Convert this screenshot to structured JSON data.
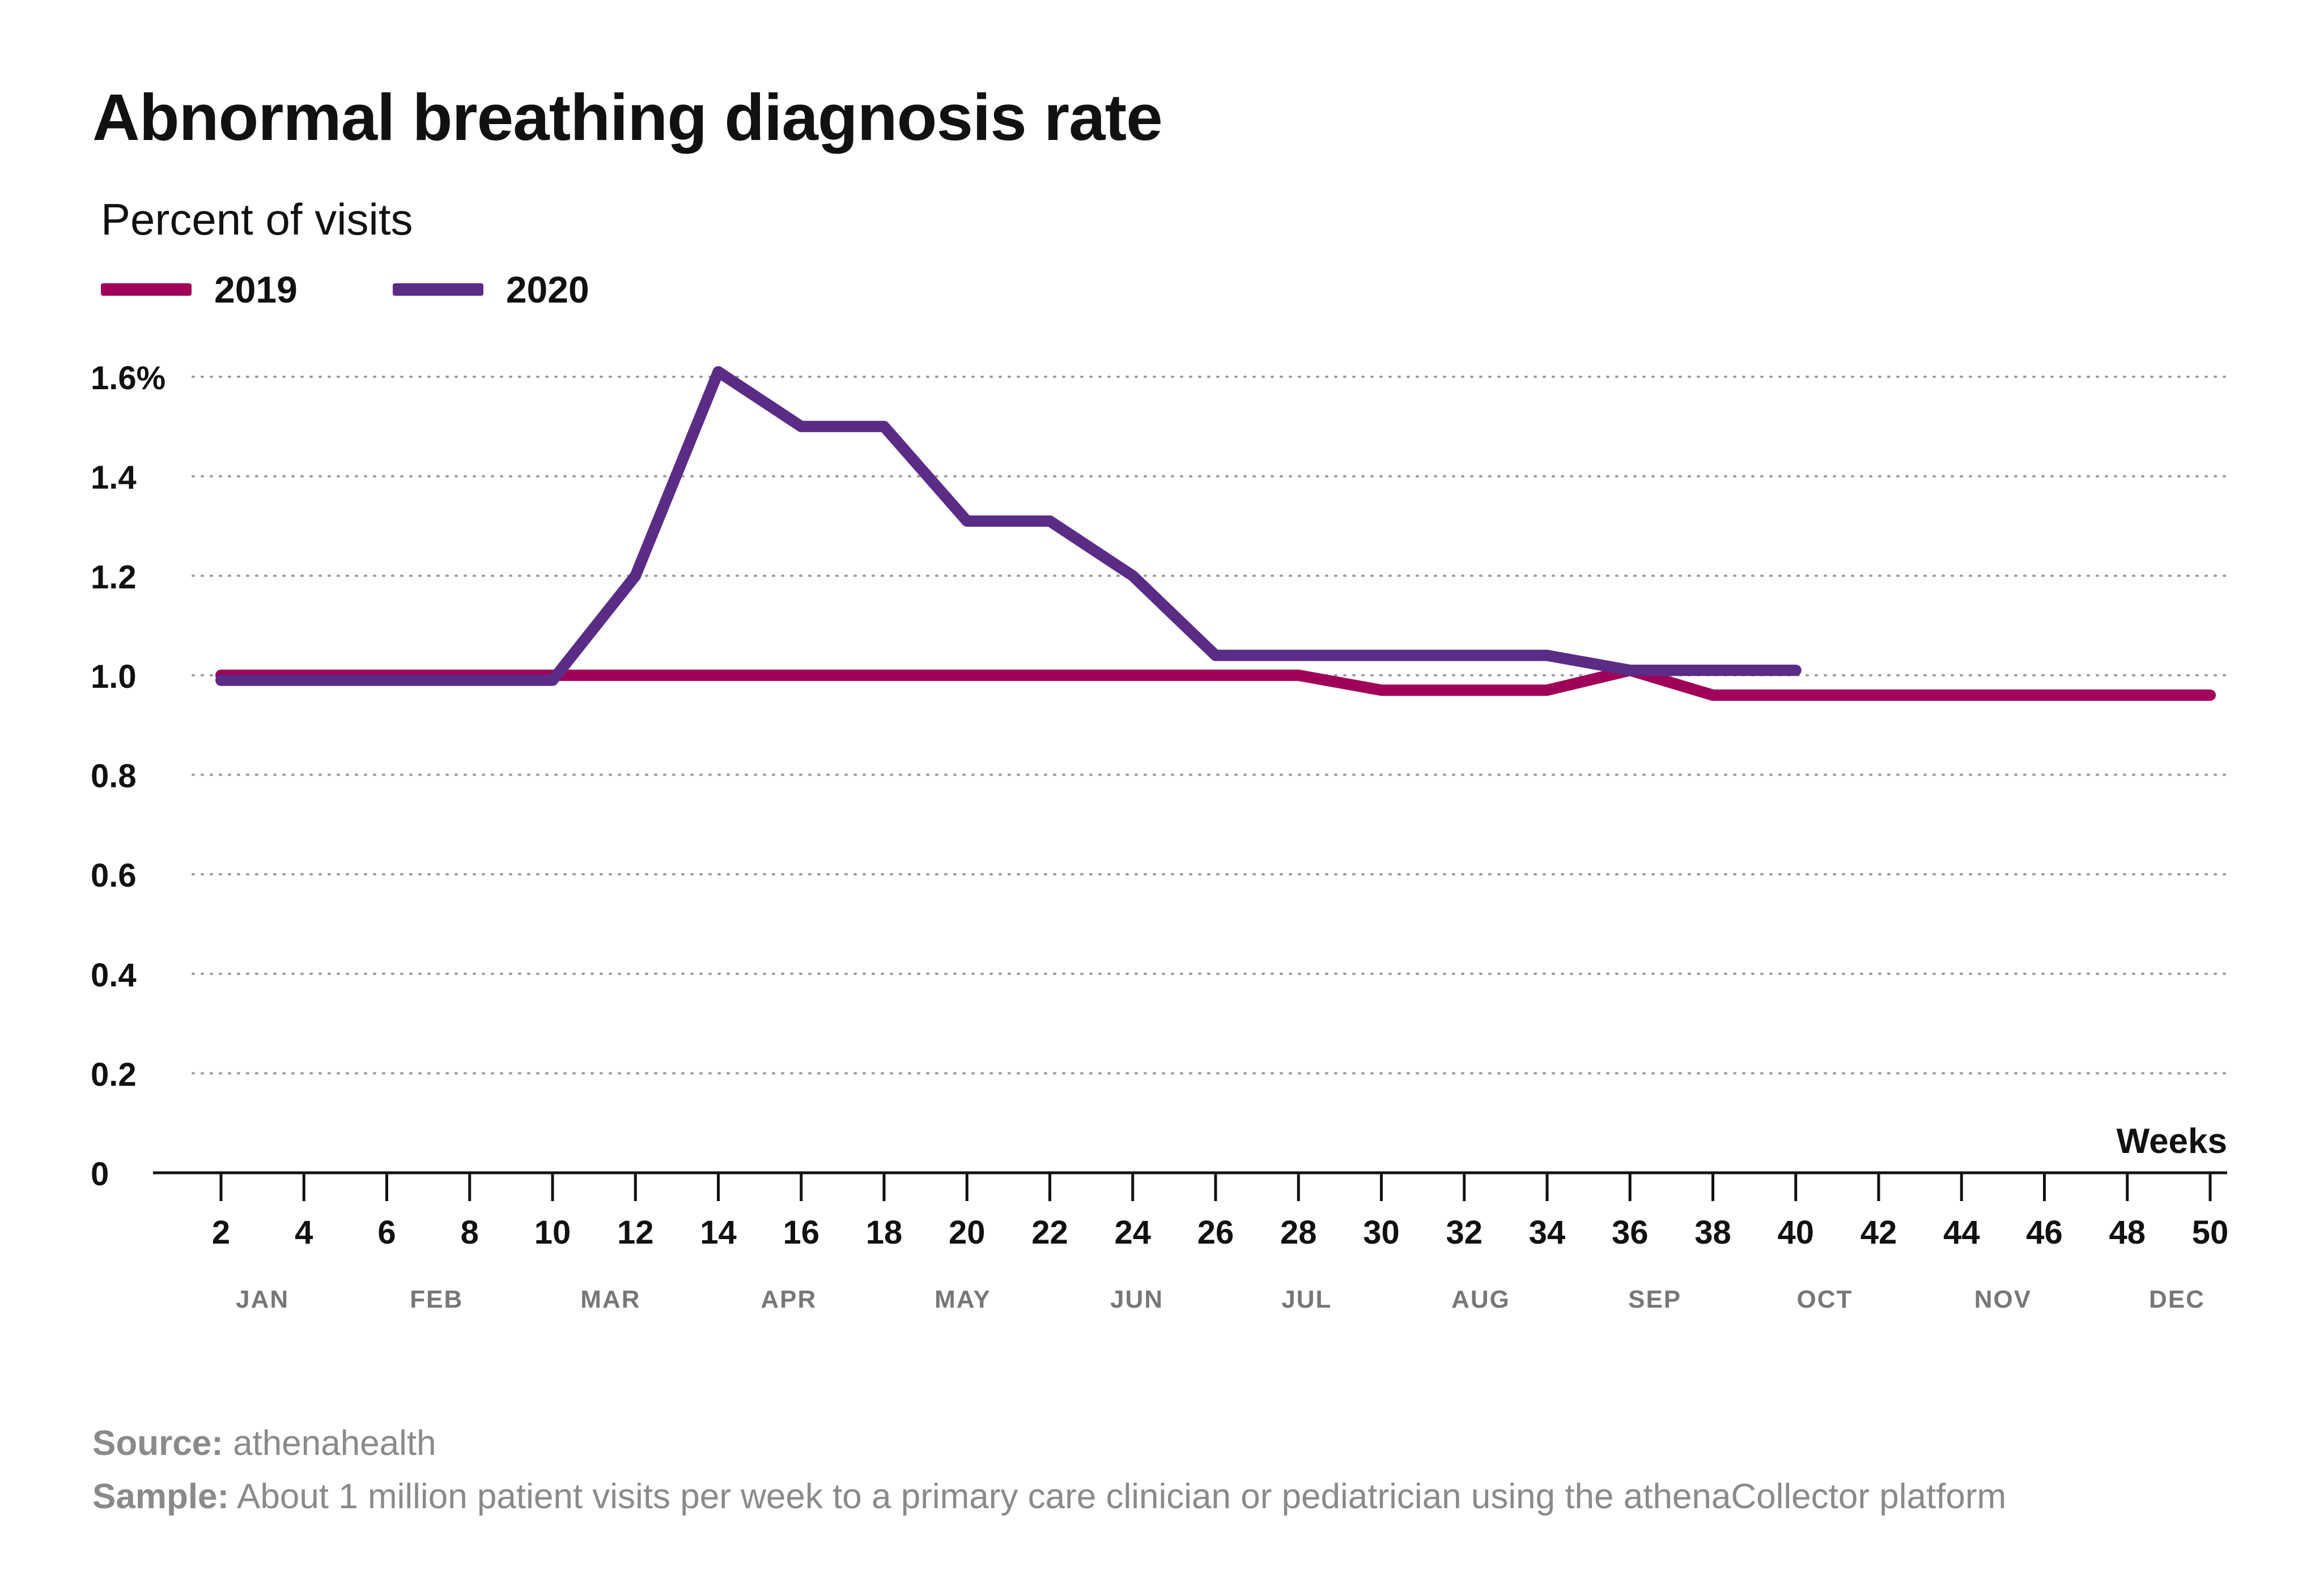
{
  "chart_data": {
    "type": "line",
    "title": "Abnormal breathing diagnosis rate",
    "subtitle": "Percent of visits",
    "xlabel": "Weeks",
    "ylabel": "",
    "xlim": [
      2,
      50
    ],
    "ylim": [
      0,
      1.6
    ],
    "grid": true,
    "legend": "top-left",
    "x_ticks": [
      2,
      4,
      6,
      8,
      10,
      12,
      14,
      16,
      18,
      20,
      22,
      24,
      26,
      28,
      30,
      32,
      34,
      36,
      38,
      40,
      42,
      44,
      46,
      48,
      50
    ],
    "y_ticks": [
      {
        "value": 0,
        "label": "0"
      },
      {
        "value": 0.2,
        "label": "0.2"
      },
      {
        "value": 0.4,
        "label": "0.4"
      },
      {
        "value": 0.6,
        "label": "0.6"
      },
      {
        "value": 0.8,
        "label": "0.8"
      },
      {
        "value": 1.0,
        "label": "1.0"
      },
      {
        "value": 1.2,
        "label": "1.2"
      },
      {
        "value": 1.4,
        "label": "1.4"
      },
      {
        "value": 1.6,
        "label": "1.6%"
      }
    ],
    "months": [
      {
        "label": "JAN",
        "x": 3
      },
      {
        "label": "FEB",
        "x": 7.2
      },
      {
        "label": "MAR",
        "x": 11.4
      },
      {
        "label": "APR",
        "x": 15.7
      },
      {
        "label": "MAY",
        "x": 19.9
      },
      {
        "label": "JUN",
        "x": 24.1
      },
      {
        "label": "JUL",
        "x": 28.2
      },
      {
        "label": "AUG",
        "x": 32.4
      },
      {
        "label": "SEP",
        "x": 36.6
      },
      {
        "label": "OCT",
        "x": 40.7
      },
      {
        "label": "NOV",
        "x": 45
      },
      {
        "label": "DEC",
        "x": 49.2
      }
    ],
    "series": [
      {
        "name": "2019",
        "color": "#a0005a",
        "points": [
          [
            2,
            1.0
          ],
          [
            28,
            1.0
          ],
          [
            30,
            0.97
          ],
          [
            34,
            0.97
          ],
          [
            36,
            1.01
          ],
          [
            38,
            0.96
          ],
          [
            50,
            0.96
          ]
        ]
      },
      {
        "name": "2020",
        "color": "#5b2c86",
        "points": [
          [
            2,
            0.99
          ],
          [
            10,
            0.99
          ],
          [
            12,
            1.2
          ],
          [
            14,
            1.61
          ],
          [
            16,
            1.5
          ],
          [
            18,
            1.5
          ],
          [
            20,
            1.31
          ],
          [
            22,
            1.31
          ],
          [
            24,
            1.2
          ],
          [
            26,
            1.04
          ],
          [
            34,
            1.04
          ],
          [
            36,
            1.01
          ],
          [
            40,
            1.01
          ]
        ]
      }
    ]
  },
  "footer": {
    "source_label": "Source:",
    "source_text": " athenahealth",
    "sample_label": "Sample:",
    "sample_text": " About 1 million patient visits per week to a primary care clinician or pediatrician using the athenaCollector platform"
  }
}
